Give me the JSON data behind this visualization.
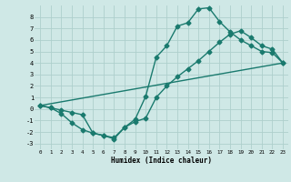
{
  "xlabel": "Humidex (Indice chaleur)",
  "background_color": "#cfe8e6",
  "grid_color": "#aecfcc",
  "line_color": "#1a7a6e",
  "xlim": [
    -0.5,
    23.5
  ],
  "ylim": [
    -3.5,
    9.0
  ],
  "xticks": [
    0,
    1,
    2,
    3,
    4,
    5,
    6,
    7,
    8,
    9,
    10,
    11,
    12,
    13,
    14,
    15,
    16,
    17,
    18,
    19,
    20,
    21,
    22,
    23
  ],
  "yticks": [
    -3,
    -2,
    -1,
    0,
    1,
    2,
    3,
    4,
    5,
    6,
    7,
    8
  ],
  "line1_x": [
    0,
    1,
    2,
    3,
    4,
    5,
    6,
    7,
    8,
    9,
    10,
    11,
    12,
    13,
    14,
    15,
    16,
    17,
    18,
    19,
    20,
    21,
    22,
    23
  ],
  "line1_y": [
    0.3,
    0.1,
    -0.1,
    -0.3,
    -0.5,
    -2.1,
    -2.3,
    -2.5,
    -1.6,
    -0.9,
    1.1,
    4.5,
    5.5,
    7.2,
    7.5,
    8.7,
    8.8,
    7.6,
    6.7,
    6.0,
    5.5,
    5.0,
    4.9,
    4.0
  ],
  "line2_x": [
    0,
    1,
    2,
    3,
    4,
    5,
    6,
    7,
    8,
    9,
    10,
    11,
    12,
    13,
    14,
    15,
    16,
    17,
    18,
    19,
    20,
    21,
    22,
    23
  ],
  "line2_y": [
    0.3,
    0.1,
    -0.4,
    -1.2,
    -1.8,
    -2.1,
    -2.3,
    -2.6,
    -1.6,
    -1.1,
    -0.8,
    1.0,
    2.0,
    2.8,
    3.5,
    4.2,
    5.0,
    5.8,
    6.5,
    6.8,
    6.2,
    5.5,
    5.2,
    4.0
  ],
  "line3_x": [
    0,
    23
  ],
  "line3_y": [
    0.3,
    4.0
  ],
  "marker": "D",
  "markersize": 2.5,
  "linewidth": 1.0
}
